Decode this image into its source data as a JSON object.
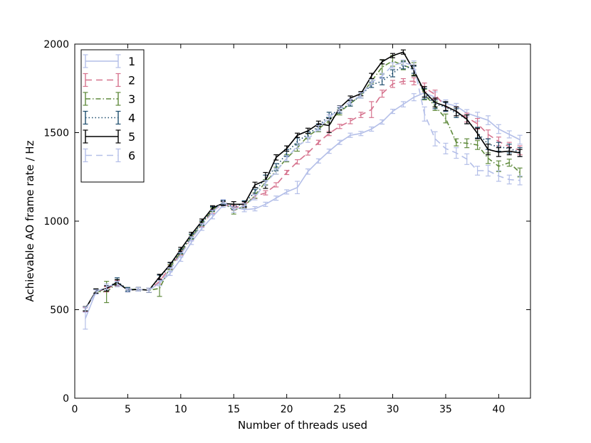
{
  "chart_data": {
    "type": "line",
    "title": "",
    "xlabel": "Number of threads used",
    "ylabel": "Achievable AO frame rate / Hz",
    "xlim": [
      0,
      43
    ],
    "ylim": [
      0,
      2000
    ],
    "xticks": [
      0,
      5,
      10,
      15,
      20,
      25,
      30,
      35,
      40
    ],
    "yticks": [
      0,
      500,
      1000,
      1500,
      2000
    ],
    "grid": false,
    "legend_position": "top-left",
    "error_bars": true,
    "x": [
      1,
      2,
      3,
      4,
      5,
      6,
      7,
      8,
      9,
      10,
      11,
      12,
      13,
      14,
      15,
      16,
      17,
      18,
      19,
      20,
      21,
      22,
      23,
      24,
      25,
      26,
      27,
      28,
      29,
      30,
      31,
      32,
      33,
      34,
      35,
      36,
      37,
      38,
      39,
      40,
      41,
      42
    ],
    "series": [
      {
        "name": "1",
        "color": "#b4bfe8",
        "dash": "",
        "values": [
          450,
          600,
          620,
          650,
          615,
          615,
          610,
          650,
          705,
          785,
          880,
          960,
          1025,
          1090,
          1080,
          1065,
          1070,
          1095,
          1130,
          1165,
          1190,
          1280,
          1340,
          1395,
          1445,
          1485,
          1495,
          1520,
          1560,
          1620,
          1660,
          1700,
          1725,
          1700,
          1665,
          1650,
          1610,
          1590,
          1570,
          1520,
          1490,
          1460
        ],
        "err": [
          60,
          12,
          15,
          15,
          10,
          10,
          12,
          15,
          12,
          12,
          12,
          12,
          12,
          12,
          15,
          12,
          12,
          12,
          12,
          12,
          35,
          15,
          12,
          12,
          12,
          12,
          12,
          12,
          12,
          12,
          15,
          20,
          20,
          30,
          20,
          15,
          20,
          25,
          25,
          25,
          20,
          25
        ]
      },
      {
        "name": "2",
        "color": "#d6738e",
        "dash": "9,6",
        "values": [
          500,
          605,
          615,
          650,
          615,
          615,
          610,
          660,
          740,
          820,
          900,
          980,
          1055,
          1100,
          1075,
          1090,
          1140,
          1160,
          1205,
          1275,
          1335,
          1385,
          1445,
          1495,
          1535,
          1565,
          1600,
          1630,
          1720,
          1775,
          1790,
          1790,
          1755,
          1715,
          1645,
          1620,
          1585,
          1550,
          1490,
          1450,
          1420,
          1400
        ],
        "err": [
          12,
          12,
          15,
          15,
          10,
          10,
          12,
          15,
          12,
          12,
          12,
          12,
          12,
          12,
          12,
          12,
          12,
          12,
          12,
          12,
          12,
          12,
          12,
          12,
          12,
          15,
          15,
          45,
          20,
          20,
          15,
          20,
          25,
          25,
          25,
          25,
          25,
          30,
          25,
          25,
          25,
          25
        ]
      },
      {
        "name": "3",
        "color": "#5f8a3c",
        "dash": "7,3,1.5,3",
        "values": [
          505,
          605,
          600,
          650,
          615,
          615,
          610,
          620,
          740,
          825,
          910,
          985,
          1065,
          1105,
          1060,
          1085,
          1145,
          1220,
          1285,
          1355,
          1415,
          1480,
          1520,
          1570,
          1615,
          1665,
          1710,
          1790,
          1870,
          1905,
          1880,
          1860,
          1715,
          1650,
          1580,
          1445,
          1440,
          1430,
          1355,
          1310,
          1330,
          1275
        ],
        "err": [
          12,
          12,
          60,
          20,
          10,
          10,
          12,
          45,
          15,
          12,
          12,
          12,
          12,
          12,
          20,
          12,
          15,
          15,
          20,
          20,
          20,
          15,
          15,
          15,
          15,
          15,
          15,
          15,
          40,
          30,
          25,
          35,
          30,
          25,
          25,
          20,
          25,
          25,
          30,
          30,
          20,
          25
        ]
      },
      {
        "name": "4",
        "color": "#1f4e6e",
        "dash": "1.5,3",
        "values": [
          505,
          605,
          620,
          660,
          615,
          615,
          610,
          680,
          750,
          830,
          915,
          990,
          1070,
          1105,
          1080,
          1100,
          1165,
          1245,
          1305,
          1385,
          1450,
          1490,
          1535,
          1600,
          1625,
          1665,
          1710,
          1770,
          1790,
          1835,
          1880,
          1855,
          1720,
          1660,
          1645,
          1610,
          1575,
          1500,
          1435,
          1420,
          1410,
          1390
        ],
        "err": [
          12,
          12,
          15,
          20,
          10,
          10,
          12,
          15,
          15,
          12,
          12,
          12,
          12,
          12,
          15,
          15,
          15,
          15,
          20,
          20,
          20,
          15,
          15,
          15,
          15,
          15,
          15,
          15,
          20,
          20,
          20,
          20,
          30,
          25,
          25,
          25,
          25,
          30,
          30,
          25,
          25,
          25
        ]
      },
      {
        "name": "5",
        "color": "#000000",
        "dash": "",
        "values": [
          505,
          605,
          620,
          655,
          610,
          615,
          610,
          685,
          755,
          840,
          925,
          1000,
          1075,
          1100,
          1095,
          1095,
          1205,
          1230,
          1360,
          1410,
          1485,
          1510,
          1550,
          1540,
          1640,
          1695,
          1720,
          1820,
          1900,
          1935,
          1955,
          1850,
          1730,
          1670,
          1650,
          1620,
          1575,
          1495,
          1405,
          1390,
          1395,
          1385
        ],
        "err": [
          12,
          12,
          15,
          15,
          10,
          10,
          12,
          15,
          12,
          12,
          12,
          12,
          12,
          12,
          15,
          15,
          15,
          45,
          15,
          15,
          12,
          15,
          15,
          40,
          12,
          12,
          12,
          15,
          12,
          12,
          12,
          30,
          30,
          25,
          25,
          25,
          25,
          30,
          30,
          25,
          20,
          20
        ]
      },
      {
        "name": "6",
        "color": "#b4bfe8",
        "dash": "9,6",
        "values": [
          500,
          600,
          630,
          645,
          610,
          615,
          610,
          650,
          725,
          810,
          900,
          975,
          1050,
          1110,
          1065,
          1085,
          1135,
          1215,
          1280,
          1355,
          1425,
          1460,
          1525,
          1585,
          1635,
          1675,
          1710,
          1785,
          1820,
          1880,
          1895,
          1880,
          1605,
          1465,
          1410,
          1385,
          1350,
          1285,
          1285,
          1255,
          1235,
          1230
        ],
        "err": [
          15,
          12,
          15,
          15,
          10,
          10,
          12,
          15,
          12,
          12,
          12,
          12,
          12,
          12,
          15,
          15,
          15,
          15,
          15,
          15,
          15,
          15,
          15,
          15,
          15,
          15,
          15,
          15,
          15,
          15,
          15,
          25,
          40,
          40,
          30,
          30,
          30,
          25,
          30,
          30,
          25,
          25
        ]
      }
    ]
  }
}
